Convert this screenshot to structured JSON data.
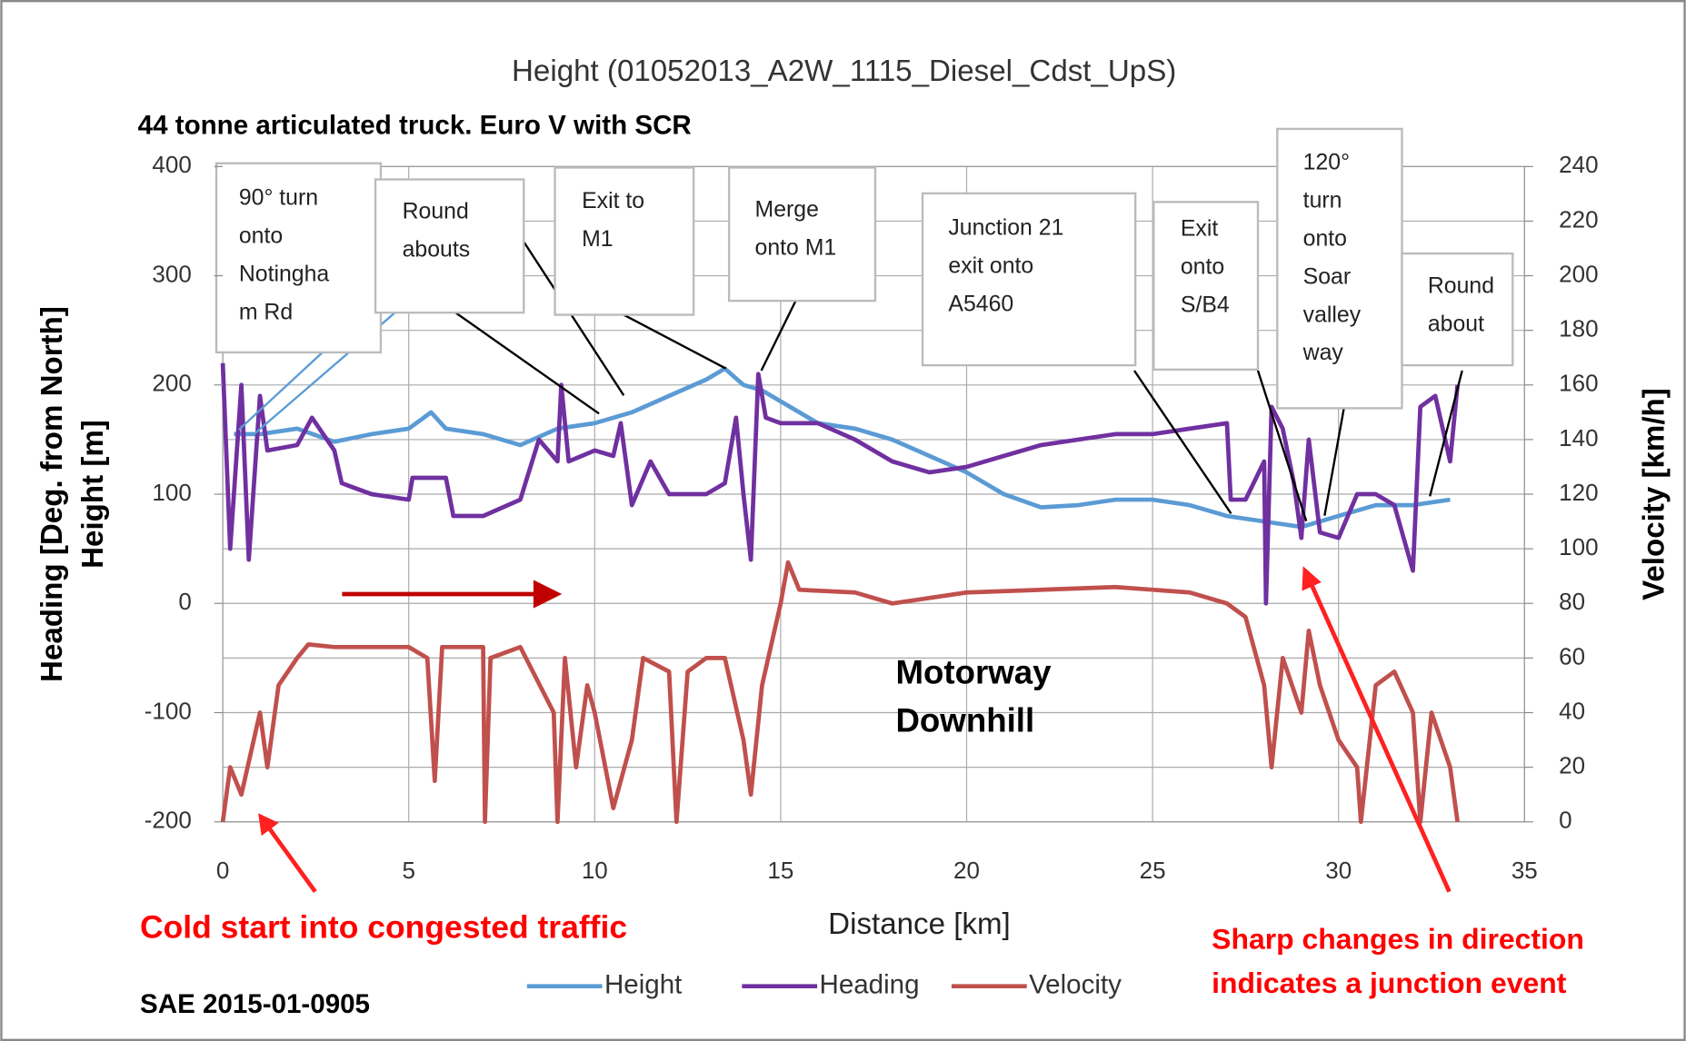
{
  "chart_data": {
    "type": "line",
    "title": "Height (01052013_A2W_1115_Diesel_Cdst_UpS)",
    "subtitle": "44 tonne articulated truck. Euro V with SCR",
    "y_label": [
      "Heading [Deg. from North]",
      "Height [m]"
    ],
    "y2_label": "Velocity [km/h]",
    "x_label": "Distance [km]",
    "xlim": [
      0,
      35
    ],
    "xticks": [
      0,
      5,
      10,
      15,
      20,
      25,
      30,
      35
    ],
    "ylim": [
      -200,
      400
    ],
    "yticks": [
      -200,
      -100,
      0,
      100,
      200,
      300,
      400
    ],
    "y2lim": [
      0,
      240
    ],
    "y2ticks": [
      0,
      20,
      40,
      60,
      80,
      100,
      120,
      140,
      160,
      180,
      200,
      220,
      240
    ],
    "grid": true,
    "legend": "bottom",
    "series": [
      {
        "name": "Height",
        "color": "#5b9bd5",
        "x": [
          0.3,
          1,
          2,
          3,
          4,
          5,
          5.6,
          6,
          7,
          8,
          9,
          10,
          11,
          12,
          13,
          13.5,
          14,
          14.5,
          15,
          16,
          17,
          18,
          19,
          20,
          21,
          22,
          23,
          24,
          25,
          26,
          27,
          28,
          29,
          30,
          31,
          32,
          33
        ],
        "values": [
          155,
          155,
          160,
          148,
          155,
          160,
          175,
          160,
          155,
          145,
          160,
          165,
          175,
          190,
          205,
          215,
          200,
          195,
          185,
          165,
          160,
          150,
          135,
          120,
          100,
          88,
          90,
          95,
          95,
          90,
          80,
          75,
          70,
          80,
          90,
          90,
          95
        ]
      },
      {
        "name": "Heading",
        "color": "#7030a0",
        "x": [
          0,
          0.2,
          0.5,
          0.7,
          1,
          1.2,
          2,
          2.4,
          3,
          3.2,
          4,
          5,
          5.1,
          6,
          6.2,
          7,
          8,
          8.5,
          9,
          9.1,
          9.3,
          10,
          10.5,
          10.7,
          11,
          11.5,
          12,
          13,
          13.5,
          13.8,
          14,
          14.2,
          14.4,
          14.6,
          15,
          16,
          17,
          18,
          19,
          20,
          21,
          22,
          23,
          24,
          25,
          26,
          27,
          27.1,
          27.5,
          28,
          28.05,
          28.2,
          28.5,
          28.8,
          29,
          29.2,
          29.5,
          30,
          30.5,
          31,
          31.5,
          32,
          32.2,
          32.6,
          33,
          33.2
        ],
        "values": [
          220,
          50,
          200,
          40,
          190,
          140,
          145,
          170,
          140,
          110,
          100,
          95,
          115,
          115,
          80,
          80,
          95,
          150,
          130,
          200,
          130,
          140,
          135,
          165,
          90,
          130,
          100,
          100,
          110,
          170,
          100,
          40,
          210,
          170,
          165,
          165,
          150,
          130,
          120,
          125,
          135,
          145,
          150,
          155,
          155,
          160,
          165,
          95,
          95,
          130,
          0,
          180,
          160,
          110,
          60,
          150,
          65,
          60,
          100,
          100,
          90,
          30,
          180,
          190,
          130,
          200
        ]
      },
      {
        "name": "Velocity",
        "color": "#c0504d",
        "axis": "y2",
        "x": [
          0,
          0.2,
          0.5,
          1,
          1.2,
          1.5,
          2,
          2.3,
          3,
          5,
          5.5,
          5.7,
          5.9,
          7,
          7.05,
          7.2,
          8,
          8.9,
          9,
          9.2,
          9.5,
          9.8,
          10,
          10.5,
          11,
          11.3,
          12,
          12.2,
          12.5,
          13,
          13.5,
          14,
          14.2,
          14.5,
          15,
          15.2,
          15.5,
          17,
          18,
          20,
          22,
          24,
          26,
          27,
          27.5,
          28,
          28.2,
          28.5,
          29,
          29.2,
          29.5,
          30,
          30.5,
          30.6,
          31,
          31.5,
          32,
          32.2,
          32.5,
          33,
          33.2
        ],
        "values": [
          0,
          20,
          10,
          40,
          20,
          50,
          60,
          65,
          64,
          64,
          60,
          15,
          64,
          64,
          0,
          60,
          64,
          40,
          0,
          60,
          20,
          50,
          40,
          5,
          30,
          60,
          55,
          0,
          55,
          60,
          60,
          30,
          10,
          50,
          80,
          95,
          85,
          84,
          80,
          84,
          85,
          86,
          84,
          80,
          75,
          50,
          20,
          60,
          40,
          70,
          50,
          30,
          20,
          0,
          50,
          55,
          40,
          0,
          40,
          20,
          0
        ]
      }
    ],
    "annotations": [
      [
        "90° turn",
        "onto",
        "Notingha",
        "m Rd"
      ],
      [
        "Round",
        "abouts"
      ],
      [
        "Exit to",
        "M1"
      ],
      [
        "Merge",
        "onto M1"
      ],
      [
        "Junction 21",
        "exit onto",
        "A5460"
      ],
      [
        "Exit",
        "onto",
        "S/B4"
      ],
      [
        "120°",
        "turn",
        "onto",
        "Soar",
        "valley",
        "way"
      ],
      [
        "Round",
        "about"
      ]
    ],
    "notes": [
      "Motorway",
      "Downhill"
    ],
    "red_notes": [
      "Cold start into congested traffic",
      "Sharp changes in direction",
      "indicates a junction event"
    ],
    "source": "SAE 2015-01-0905"
  }
}
